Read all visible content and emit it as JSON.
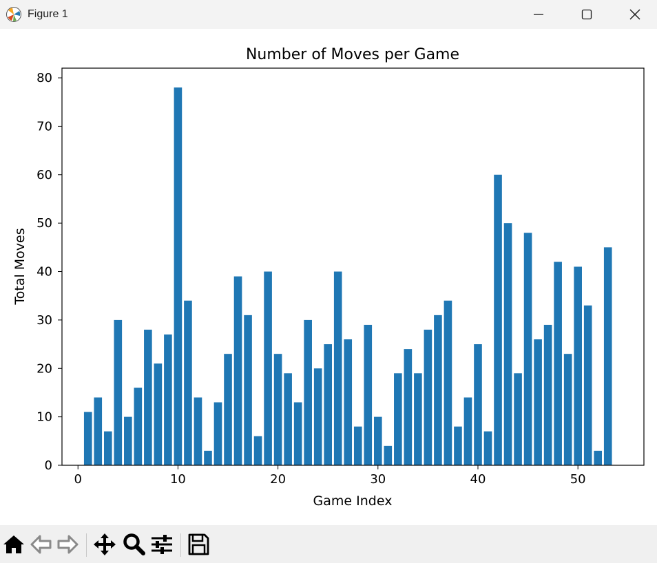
{
  "window": {
    "title": "Figure 1",
    "icon": "matplotlib-icon",
    "controls": [
      "minimize-icon",
      "maximize-icon",
      "close-icon"
    ]
  },
  "toolbar": {
    "buttons": [
      {
        "name": "home-icon"
      },
      {
        "name": "back-arrow-icon"
      },
      {
        "name": "forward-arrow-icon"
      },
      {
        "name": "pan-move-icon"
      },
      {
        "name": "zoom-magnifier-icon"
      },
      {
        "name": "configure-subplots-icon"
      },
      {
        "name": "save-floppy-icon"
      }
    ]
  },
  "chart_data": {
    "type": "bar",
    "title": "Number of Moves per Game",
    "xlabel": "Game Index",
    "ylabel": "Total Moves",
    "color": "#1f77b4",
    "x": [
      1,
      2,
      3,
      4,
      5,
      6,
      7,
      8,
      9,
      10,
      11,
      12,
      13,
      14,
      15,
      16,
      17,
      18,
      19,
      20,
      21,
      22,
      23,
      24,
      25,
      26,
      27,
      28,
      29,
      30,
      31,
      32,
      33,
      34,
      35,
      36,
      37,
      38,
      39,
      40,
      41,
      42,
      43,
      44,
      45,
      46,
      47,
      48,
      49,
      50,
      51,
      52,
      53
    ],
    "values": [
      11,
      14,
      7,
      30,
      10,
      16,
      28,
      21,
      27,
      78,
      34,
      14,
      3,
      13,
      23,
      39,
      31,
      6,
      40,
      23,
      19,
      13,
      30,
      20,
      25,
      40,
      26,
      8,
      29,
      10,
      4,
      19,
      24,
      19,
      28,
      31,
      34,
      8,
      14,
      25,
      7,
      60,
      50,
      19,
      48,
      26,
      29,
      42,
      23,
      41,
      33,
      3,
      45
    ],
    "xlim": [
      -1.6,
      56.6
    ],
    "ylim": [
      0,
      82
    ],
    "xticks": [
      0,
      10,
      20,
      30,
      40,
      50
    ],
    "xtick_labels": [
      "0",
      "10",
      "20",
      "30",
      "40",
      "50"
    ],
    "yticks": [
      0,
      10,
      20,
      30,
      40,
      50,
      60,
      70,
      80
    ],
    "ytick_labels": [
      "0",
      "10",
      "20",
      "30",
      "40",
      "50",
      "60",
      "70",
      "80"
    ],
    "bar_width": 0.8,
    "grid": false,
    "legend": false
  }
}
